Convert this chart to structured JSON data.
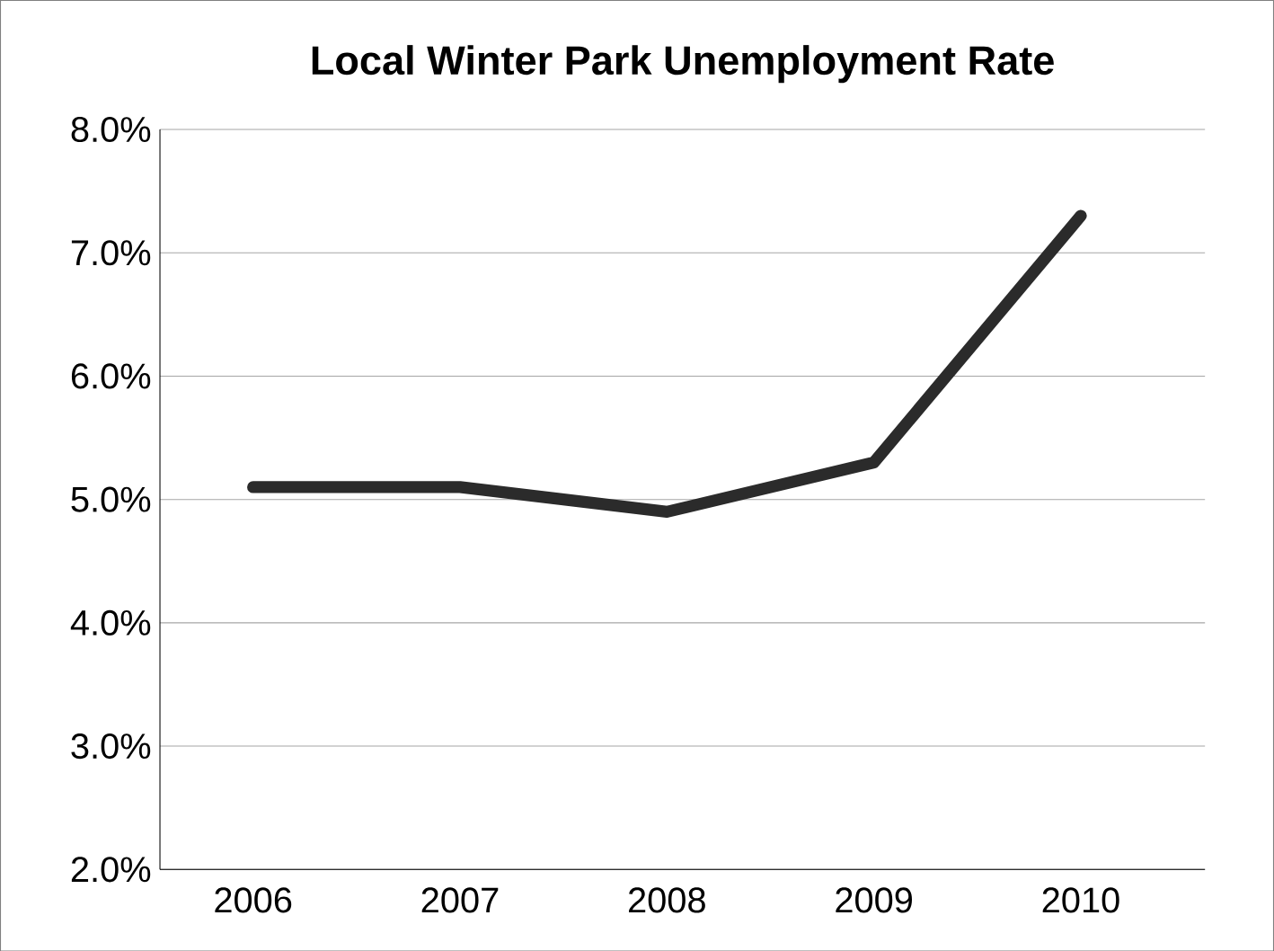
{
  "chart_data": {
    "type": "line",
    "title": "Local Winter Park Unemployment Rate",
    "categories": [
      "2006",
      "2007",
      "2008",
      "2009",
      "2010"
    ],
    "series": [
      {
        "color": "#2b2b2b",
        "values": [
          5.1,
          5.1,
          4.9,
          5.3,
          7.3
        ]
      }
    ],
    "ylim": [
      2,
      8
    ],
    "yticks": [
      {
        "value": 2,
        "label": "2.0%"
      },
      {
        "value": 3,
        "label": "3.0%"
      },
      {
        "value": 4,
        "label": "4.0%"
      },
      {
        "value": 5,
        "label": "5.0%"
      },
      {
        "value": 6,
        "label": "6.0%"
      },
      {
        "value": 7,
        "label": "7.0%"
      },
      {
        "value": 8,
        "label": "8.0%"
      }
    ],
    "grid": "y",
    "marker": "none",
    "line_style": "solid"
  }
}
